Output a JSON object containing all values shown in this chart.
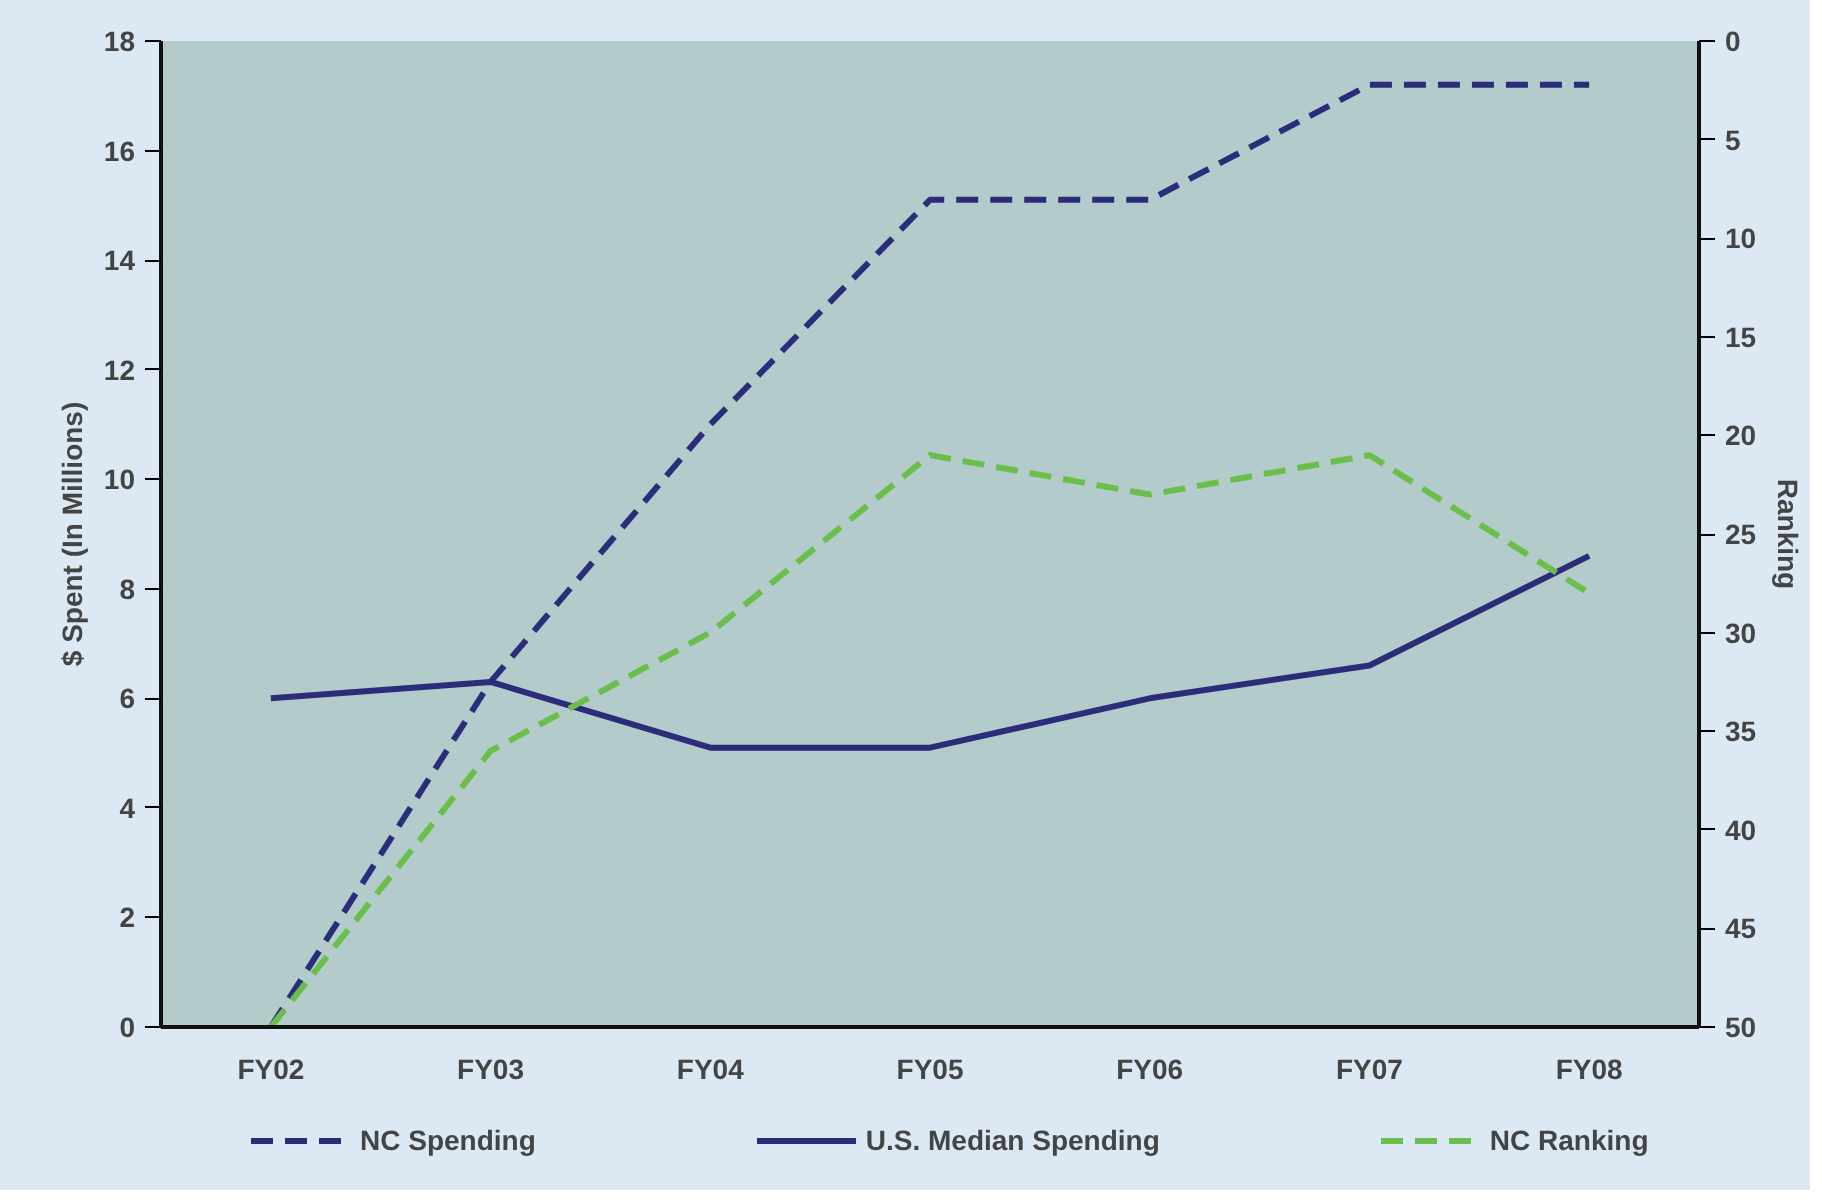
{
  "chart_data": {
    "type": "line",
    "ylabel": "$ Spent (In Millions)",
    "y2label": "Ranking",
    "categories": [
      "FY02",
      "FY03",
      "FY04",
      "FY05",
      "FY06",
      "FY07",
      "FY08"
    ],
    "series": [
      {
        "name": "NC Spending",
        "color": "#2b2d7a",
        "line_style": "dashed",
        "values": [
          0,
          6.3,
          11.0,
          15.1,
          15.1,
          17.2,
          17.2
        ]
      },
      {
        "name": "U.S. Median Spending",
        "color": "#2b2d7a",
        "line_style": "solid",
        "values": [
          6.0,
          6.3,
          5.1,
          5.1,
          6.0,
          6.6,
          8.6
        ]
      },
      {
        "name": "NC Ranking",
        "color": "#6abf4b",
        "line_style": "dashed",
        "axis": "y2",
        "values": [
          50,
          36,
          30,
          21,
          23,
          21,
          28
        ]
      }
    ],
    "ylim": [
      0,
      18
    ],
    "yticks": [
      0,
      2,
      4,
      6,
      8,
      10,
      12,
      14,
      16,
      18
    ],
    "y2lim": [
      50,
      0
    ],
    "y2ticks": [
      0,
      5,
      10,
      15,
      20,
      25,
      30,
      35,
      40,
      45,
      50
    ],
    "grid": false,
    "legend": "bottom",
    "marker": "none"
  }
}
